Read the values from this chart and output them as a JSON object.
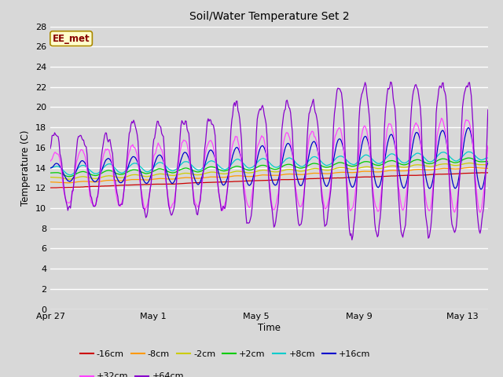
{
  "title": "Soil/Water Temperature Set 2",
  "xlabel": "Time",
  "ylabel": "Temperature (C)",
  "ylim": [
    0,
    28
  ],
  "yticks": [
    0,
    2,
    4,
    6,
    8,
    10,
    12,
    14,
    16,
    18,
    20,
    22,
    24,
    26,
    28
  ],
  "background_color": "#d8d8d8",
  "plot_bg_color": "#d8d8d8",
  "legend_label": "EE_met",
  "legend_box_color": "#ffffcc",
  "legend_box_border": "#aa8800",
  "legend_text_color": "#880000",
  "series": [
    {
      "label": "-16cm",
      "color": "#cc0000"
    },
    {
      "label": "-8cm",
      "color": "#ff9900"
    },
    {
      "label": "-2cm",
      "color": "#cccc00"
    },
    {
      "label": "+2cm",
      "color": "#00cc00"
    },
    {
      "label": "+8cm",
      "color": "#00cccc"
    },
    {
      "label": "+16cm",
      "color": "#0000cc"
    },
    {
      "label": "+32cm",
      "color": "#ff44ff"
    },
    {
      "label": "+64cm",
      "color": "#8800cc"
    }
  ],
  "duration_days": 17,
  "x_ticks_labels": [
    "Apr 27",
    "May 1",
    "May 5",
    "May 9",
    "May 13"
  ],
  "x_ticks_pos": [
    0,
    4,
    8,
    12,
    16
  ]
}
